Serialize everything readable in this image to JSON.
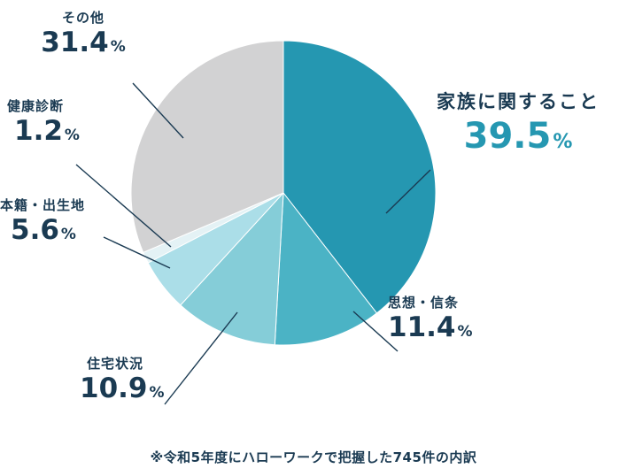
{
  "chart_data": {
    "type": "pie",
    "direction": "clockwise",
    "start_angle_deg": 0,
    "unit": "%",
    "segments": [
      {
        "label": "家族に関すること",
        "value": 39.5,
        "color": "#2597b1",
        "highlight": true
      },
      {
        "label": "思想・信条",
        "value": 11.4,
        "color": "#4bb3c5",
        "highlight": false
      },
      {
        "label": "住宅状況",
        "value": 10.9,
        "color": "#85cdd8",
        "highlight": false
      },
      {
        "label": "本籍・出生地",
        "value": 5.6,
        "color": "#abdee8",
        "highlight": false
      },
      {
        "label": "健康診断",
        "value": 1.2,
        "color": "#e4f2f5",
        "highlight": false
      },
      {
        "label": "その他",
        "value": 31.4,
        "color": "#d2d2d3",
        "highlight": false
      }
    ],
    "footnote": "※令和5年度にハローワークで把握した745件の内訳"
  },
  "ui": {
    "percent_sign": "%",
    "colors": {
      "text": "#1a3a52",
      "highlight": "#2597b1",
      "leader_line": "#1a3a52"
    }
  }
}
